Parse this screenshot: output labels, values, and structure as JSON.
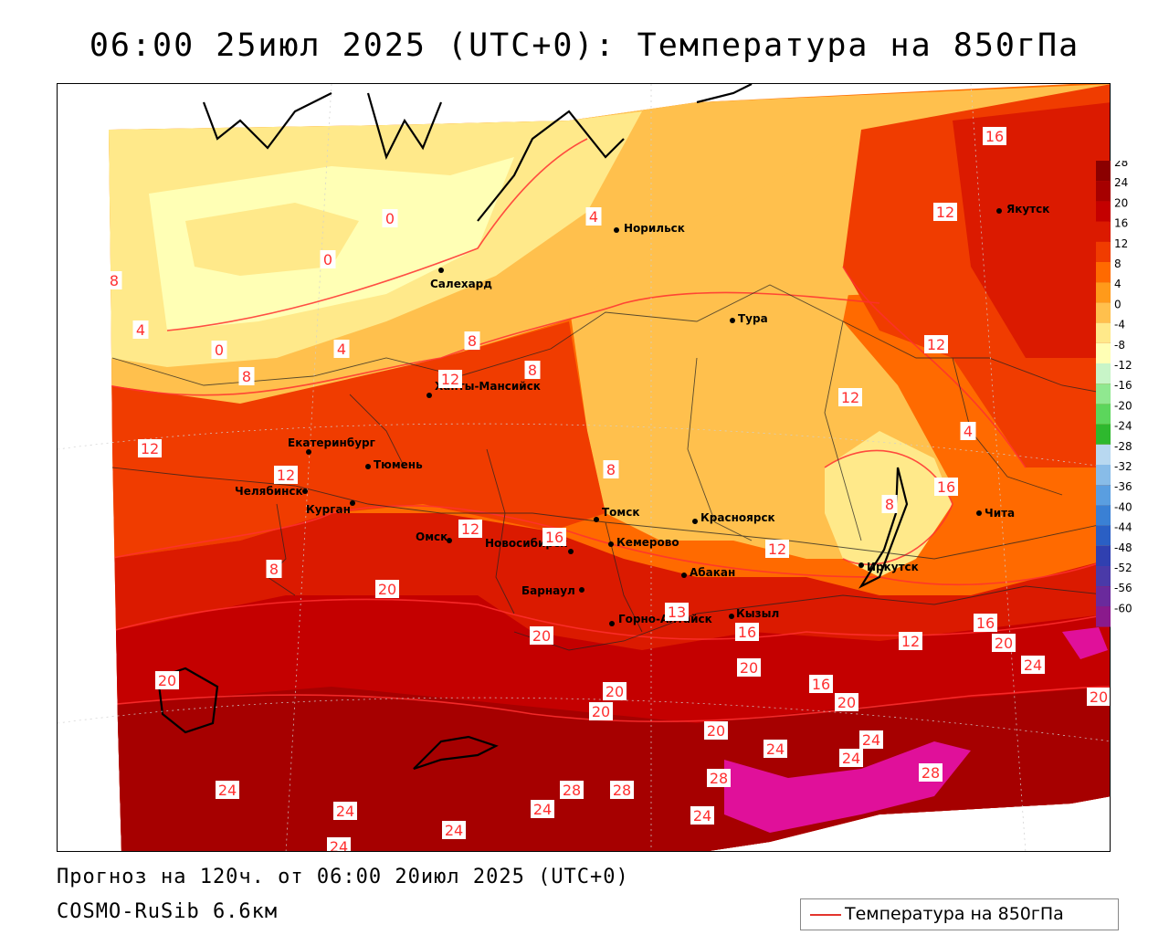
{
  "title": "06:00 25июл 2025 (UTC+0): Температура на 850гПа",
  "forecast_line": "Прогноз на 120ч. от 06:00 20июл 2025 (UTC+0)",
  "model_line": "COSMO-RuSib 6.6км",
  "legend": {
    "label": "Температура на 850гПа",
    "line_color": "#e3342d"
  },
  "colorbar": {
    "ticks": [
      "28",
      "24",
      "20",
      "16",
      "12",
      "8",
      "4",
      "0",
      "-4",
      "-8",
      "-12",
      "-16",
      "-20",
      "-24",
      "-28",
      "-32",
      "-36",
      "-40",
      "-44",
      "-48",
      "-52",
      "-56",
      "-60"
    ],
    "colors": [
      "#8b0000",
      "#a60000",
      "#c40000",
      "#db1a00",
      "#f03c00",
      "#ff6a00",
      "#ff9a1a",
      "#ffc04d",
      "#ffe98a",
      "#ffffb5",
      "#c8f5c8",
      "#90e890",
      "#5cd65c",
      "#2eb82e",
      "#b8d8f0",
      "#88bce8",
      "#5a9ee0",
      "#3a80d4",
      "#2a5fc4",
      "#3040b0",
      "#4a3aa8",
      "#6a2a9c",
      "#8a1a8c"
    ]
  },
  "cities": [
    {
      "name": "Норильск"
    },
    {
      "name": "Якутск"
    },
    {
      "name": "Салехард"
    },
    {
      "name": "Тура"
    },
    {
      "name": "Ханты-Мансийск"
    },
    {
      "name": "Екатеринбург"
    },
    {
      "name": "Тюмень"
    },
    {
      "name": "Челябинск"
    },
    {
      "name": "Курган"
    },
    {
      "name": "Омск"
    },
    {
      "name": "Новосибирск"
    },
    {
      "name": "Томск"
    },
    {
      "name": "Кемерово"
    },
    {
      "name": "Красноярск"
    },
    {
      "name": "Абакан"
    },
    {
      "name": "Барнаул"
    },
    {
      "name": "Горно-Алтайск"
    },
    {
      "name": "Кызыл"
    },
    {
      "name": "Иркутск"
    },
    {
      "name": "Чита"
    }
  ],
  "contour_labels": [
    "16",
    "12",
    "0",
    "4",
    "0",
    "8",
    "4",
    "0",
    "4",
    "8",
    "12",
    "8",
    "8",
    "12",
    "12",
    "8",
    "12",
    "12",
    "4",
    "8",
    "16",
    "12",
    "16",
    "8",
    "12",
    "20",
    "20",
    "13",
    "16",
    "16",
    "12",
    "20",
    "20",
    "24",
    "20",
    "20",
    "20",
    "16",
    "20",
    "20",
    "24",
    "24",
    "24",
    "28",
    "24",
    "28",
    "28",
    "24",
    "24",
    "24",
    "24",
    "24",
    "28",
    "20"
  ],
  "chart_data": {
    "type": "heatmap",
    "title": "06:00 25июл 2025 (UTC+0): Температура на 850гПа",
    "variable": "Температура на 850гПа",
    "levels": [
      28,
      24,
      20,
      16,
      12,
      8,
      4,
      0,
      -4,
      -8,
      -12,
      -16,
      -20,
      -24,
      -28,
      -32,
      -36,
      -40,
      -44,
      -48,
      -52,
      -56,
      -60
    ]
  }
}
